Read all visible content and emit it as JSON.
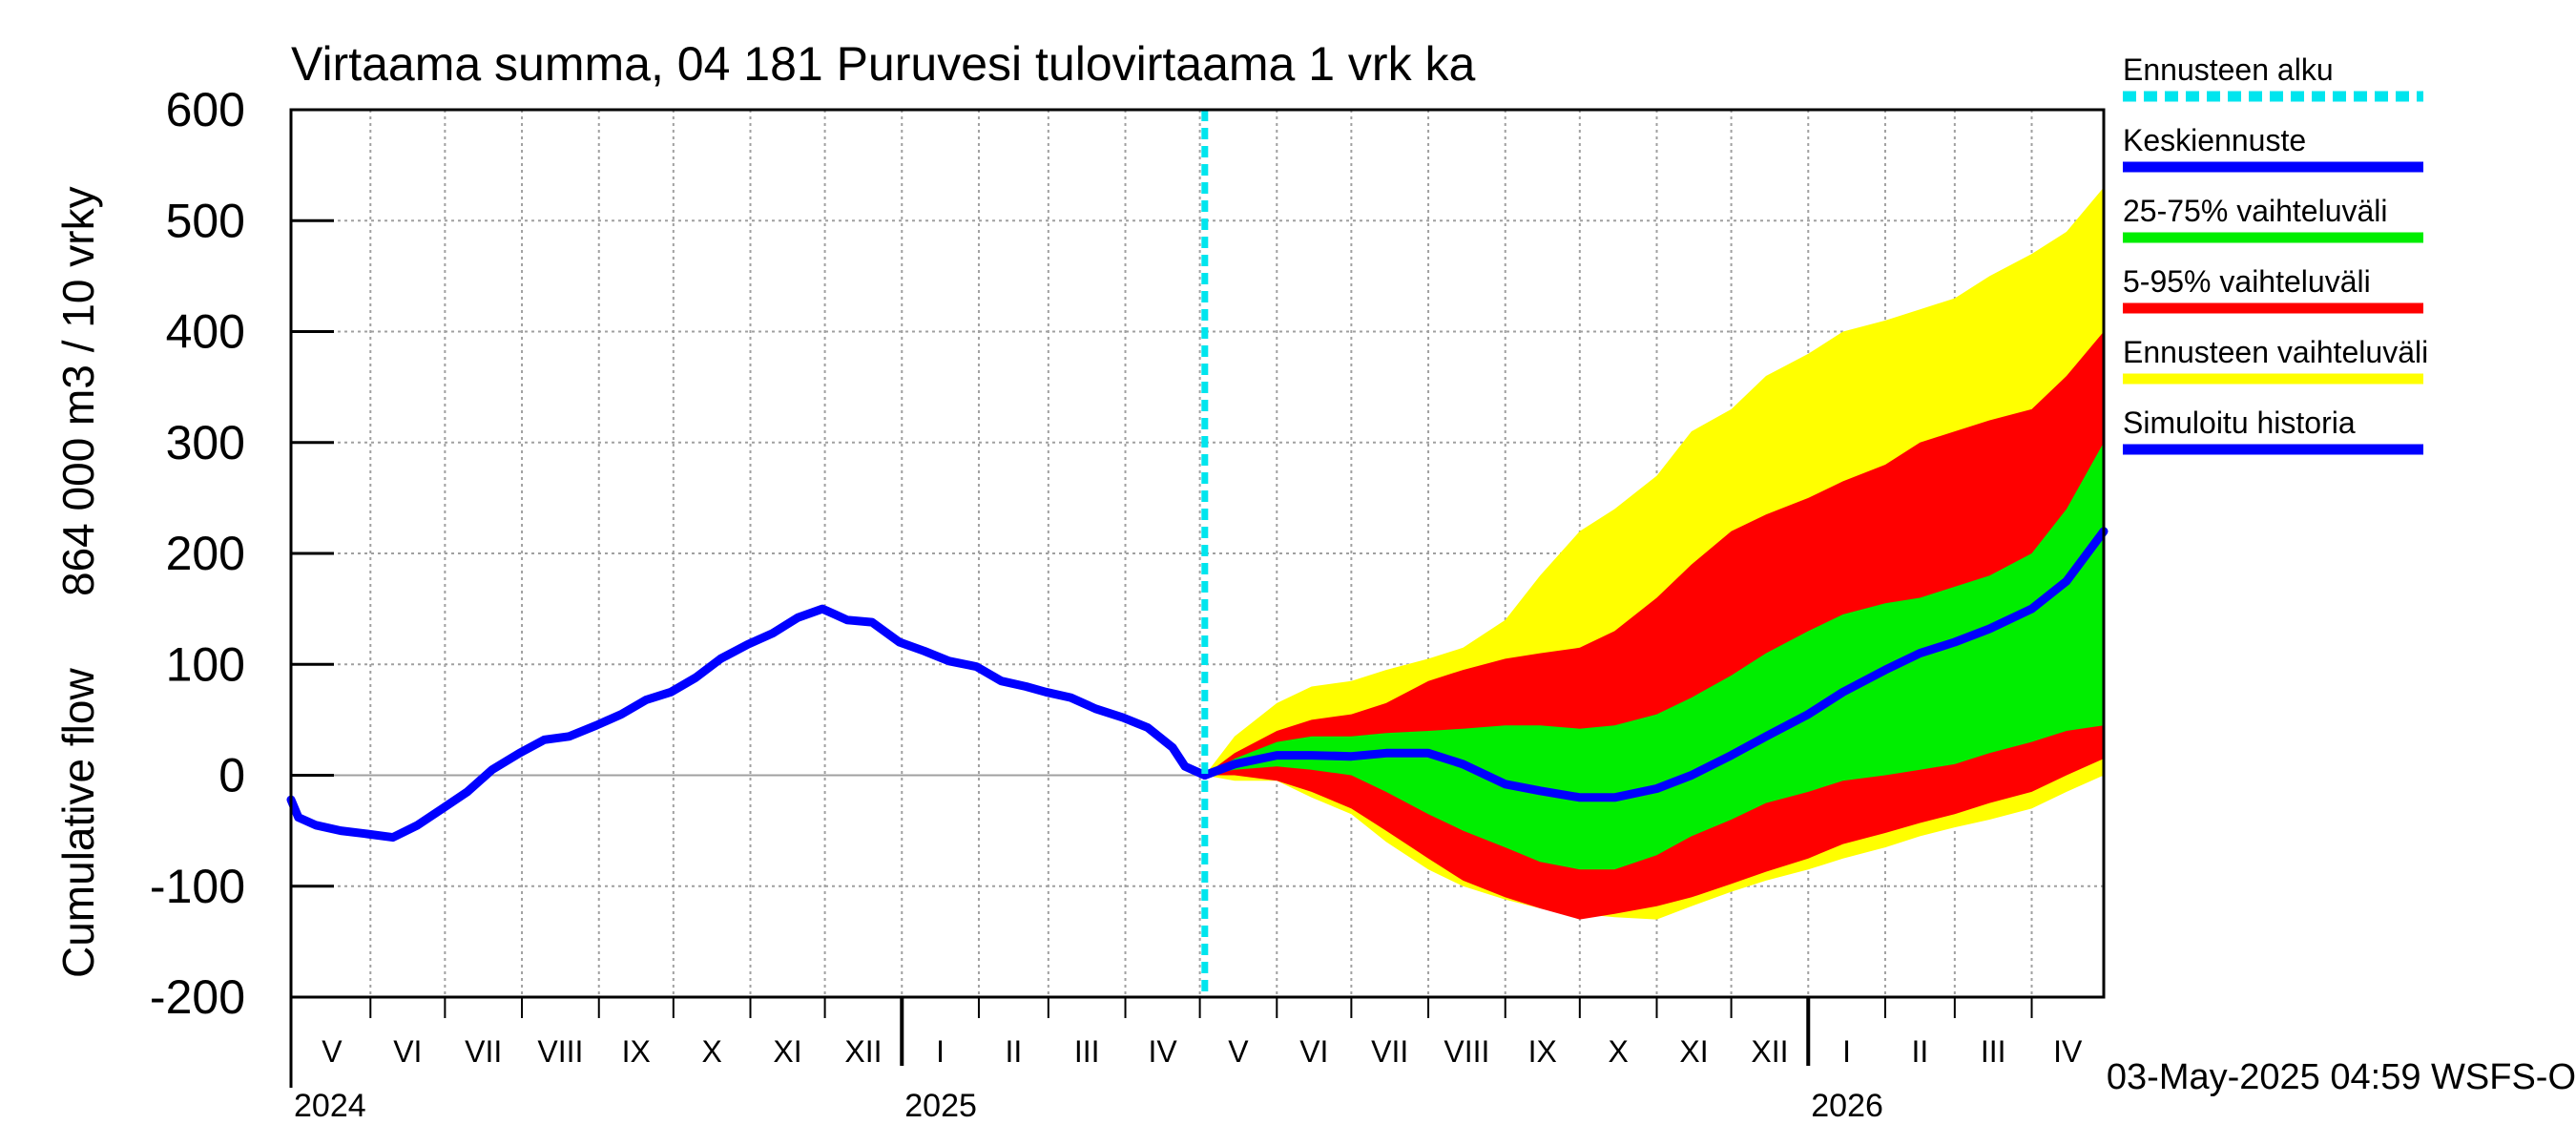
{
  "chart_data": {
    "type": "area",
    "title": "Virtaama summa, 04 181 Puruvesi tulovirtaama 1 vrk ka",
    "ylabel_lines": [
      "864 000 m3 / 10 vrky",
      "Cumulative flow"
    ],
    "ylim": [
      -200,
      600
    ],
    "yticks": [
      -200,
      -100,
      0,
      100,
      200,
      300,
      400,
      500,
      600
    ],
    "grid": true,
    "legend_position": "right",
    "xrange": [
      "2024-04-30",
      "2026-04-30"
    ],
    "forecast_start": "2025-05-03",
    "months": [
      {
        "label": "V",
        "start": "2024-05-01"
      },
      {
        "label": "VI",
        "start": "2024-06-01"
      },
      {
        "label": "VII",
        "start": "2024-07-01"
      },
      {
        "label": "VIII",
        "start": "2024-08-01"
      },
      {
        "label": "IX",
        "start": "2024-09-01"
      },
      {
        "label": "X",
        "start": "2024-10-01"
      },
      {
        "label": "XI",
        "start": "2024-11-01"
      },
      {
        "label": "XII",
        "start": "2024-12-01"
      },
      {
        "label": "I",
        "start": "2025-01-01"
      },
      {
        "label": "II",
        "start": "2025-02-01"
      },
      {
        "label": "III",
        "start": "2025-03-01"
      },
      {
        "label": "IV",
        "start": "2025-04-01"
      },
      {
        "label": "V",
        "start": "2025-05-01"
      },
      {
        "label": "VI",
        "start": "2025-06-01"
      },
      {
        "label": "VII",
        "start": "2025-07-01"
      },
      {
        "label": "VIII",
        "start": "2025-08-01"
      },
      {
        "label": "IX",
        "start": "2025-09-01"
      },
      {
        "label": "X",
        "start": "2025-10-01"
      },
      {
        "label": "XI",
        "start": "2025-11-01"
      },
      {
        "label": "XII",
        "start": "2025-12-01"
      },
      {
        "label": "I",
        "start": "2026-01-01"
      },
      {
        "label": "II",
        "start": "2026-02-01"
      },
      {
        "label": "III",
        "start": "2026-03-01"
      },
      {
        "label": "IV",
        "start": "2026-04-01"
      }
    ],
    "years": [
      {
        "label": "2024",
        "start": "2024-05-01"
      },
      {
        "label": "2025",
        "start": "2025-01-01"
      },
      {
        "label": "2026",
        "start": "2026-01-01"
      }
    ],
    "legend": [
      {
        "label": "Ennusteen alku",
        "color": "#00e5ee",
        "style": "dashed"
      },
      {
        "label": "Keskiennuste",
        "color": "#0000ff",
        "style": "solid"
      },
      {
        "label": "25-75% vaihteluväli",
        "color": "#00ee00",
        "style": "solid"
      },
      {
        "label": "5-95% vaihteluväli",
        "color": "#ff0000",
        "style": "solid"
      },
      {
        "label": "Ennusteen vaihteluväli",
        "color": "#ffff00",
        "style": "solid"
      },
      {
        "label": "Simuloitu historia",
        "color": "#0000ff",
        "style": "solid"
      }
    ],
    "colors": {
      "history": "#0000ff",
      "median": "#0000ff",
      "band_25_75": "#00ee00",
      "band_5_95": "#ff0000",
      "band_full": "#ffff00",
      "forecast_start": "#00e5ee",
      "grid": "#a0a0a0",
      "zero_line": "#a0a0a0"
    },
    "series": [
      {
        "name": "Simuloitu historia",
        "x": [
          "2024-04-30",
          "2024-05-03",
          "2024-05-10",
          "2024-05-20",
          "2024-05-31",
          "2024-06-10",
          "2024-06-20",
          "2024-06-30",
          "2024-07-10",
          "2024-07-20",
          "2024-07-31",
          "2024-08-10",
          "2024-08-20",
          "2024-08-31",
          "2024-09-10",
          "2024-09-20",
          "2024-09-30",
          "2024-10-10",
          "2024-10-20",
          "2024-10-31",
          "2024-11-10",
          "2024-11-15",
          "2024-11-20",
          "2024-11-30",
          "2024-12-05",
          "2024-12-10",
          "2024-12-20",
          "2024-12-31",
          "2025-01-10",
          "2025-01-20",
          "2025-01-31",
          "2025-02-10",
          "2025-02-20",
          "2025-02-28",
          "2025-03-10",
          "2025-03-20",
          "2025-03-31",
          "2025-04-10",
          "2025-04-20",
          "2025-04-25",
          "2025-05-03"
        ],
        "y": [
          -22,
          -38,
          -45,
          -50,
          -53,
          -56,
          -45,
          -30,
          -15,
          5,
          20,
          32,
          35,
          45,
          55,
          68,
          75,
          88,
          105,
          118,
          128,
          135,
          142,
          150,
          145,
          140,
          138,
          120,
          112,
          103,
          98,
          85,
          80,
          75,
          70,
          60,
          52,
          43,
          25,
          8,
          0
        ]
      },
      {
        "name": "Keskiennuste",
        "x": [
          "2025-05-03",
          "2025-05-15",
          "2025-06-01",
          "2025-06-15",
          "2025-07-01",
          "2025-07-15",
          "2025-08-01",
          "2025-08-15",
          "2025-09-01",
          "2025-09-15",
          "2025-10-01",
          "2025-10-15",
          "2025-11-01",
          "2025-11-15",
          "2025-12-01",
          "2025-12-15",
          "2026-01-01",
          "2026-01-15",
          "2026-02-01",
          "2026-02-15",
          "2026-03-01",
          "2026-03-15",
          "2026-04-01",
          "2026-04-15",
          "2026-04-30"
        ],
        "y": [
          0,
          10,
          18,
          18,
          17,
          20,
          20,
          10,
          -8,
          -14,
          -20,
          -20,
          -12,
          0,
          18,
          35,
          55,
          75,
          95,
          110,
          120,
          132,
          150,
          175,
          220
        ]
      }
    ],
    "bands": [
      {
        "name": "Ennusteen vaihteluväli",
        "x": [
          "2025-05-03",
          "2025-05-15",
          "2025-06-01",
          "2025-06-15",
          "2025-07-01",
          "2025-07-15",
          "2025-08-01",
          "2025-08-15",
          "2025-09-01",
          "2025-09-15",
          "2025-10-01",
          "2025-10-15",
          "2025-11-01",
          "2025-11-15",
          "2025-12-01",
          "2025-12-15",
          "2026-01-01",
          "2026-01-15",
          "2026-02-01",
          "2026-02-15",
          "2026-03-01",
          "2026-03-15",
          "2026-04-01",
          "2026-04-15",
          "2026-04-30"
        ],
        "upper": [
          0,
          35,
          65,
          80,
          85,
          95,
          105,
          115,
          140,
          180,
          220,
          240,
          270,
          310,
          330,
          360,
          380,
          400,
          410,
          420,
          430,
          450,
          470,
          490,
          530
        ],
        "lower": [
          0,
          -5,
          -5,
          -20,
          -35,
          -60,
          -85,
          -100,
          -112,
          -120,
          -125,
          -128,
          -130,
          -118,
          -105,
          -95,
          -85,
          -75,
          -65,
          -55,
          -47,
          -40,
          -30,
          -15,
          0
        ]
      },
      {
        "name": "5-95% vaihteluväli",
        "x": [
          "2025-05-03",
          "2025-05-15",
          "2025-06-01",
          "2025-06-15",
          "2025-07-01",
          "2025-07-15",
          "2025-08-01",
          "2025-08-15",
          "2025-09-01",
          "2025-09-15",
          "2025-10-01",
          "2025-10-15",
          "2025-11-01",
          "2025-11-15",
          "2025-12-01",
          "2025-12-15",
          "2026-01-01",
          "2026-01-15",
          "2026-02-01",
          "2026-02-15",
          "2026-03-01",
          "2026-03-15",
          "2026-04-01",
          "2026-04-15",
          "2026-04-30"
        ],
        "upper": [
          0,
          20,
          40,
          50,
          55,
          65,
          85,
          95,
          105,
          110,
          115,
          130,
          160,
          190,
          220,
          235,
          250,
          265,
          280,
          300,
          310,
          320,
          330,
          360,
          400
        ],
        "lower": [
          0,
          0,
          -5,
          -15,
          -30,
          -50,
          -75,
          -95,
          -110,
          -120,
          -130,
          -125,
          -118,
          -110,
          -98,
          -87,
          -75,
          -62,
          -52,
          -43,
          -35,
          -25,
          -15,
          0,
          15
        ]
      },
      {
        "name": "25-75% vaihteluväli",
        "x": [
          "2025-05-03",
          "2025-05-15",
          "2025-06-01",
          "2025-06-15",
          "2025-07-01",
          "2025-07-15",
          "2025-08-01",
          "2025-08-15",
          "2025-09-01",
          "2025-09-15",
          "2025-10-01",
          "2025-10-15",
          "2025-11-01",
          "2025-11-15",
          "2025-12-01",
          "2025-12-15",
          "2026-01-01",
          "2026-01-15",
          "2026-02-01",
          "2026-02-15",
          "2026-03-01",
          "2026-03-15",
          "2026-04-01",
          "2026-04-15",
          "2026-04-30"
        ],
        "upper": [
          0,
          15,
          30,
          35,
          35,
          38,
          40,
          42,
          45,
          45,
          42,
          45,
          55,
          70,
          90,
          110,
          130,
          145,
          155,
          160,
          170,
          180,
          200,
          240,
          300
        ],
        "lower": [
          0,
          5,
          8,
          5,
          0,
          -15,
          -35,
          -50,
          -65,
          -78,
          -85,
          -85,
          -72,
          -55,
          -40,
          -25,
          -15,
          -5,
          0,
          5,
          10,
          20,
          30,
          40,
          45
        ]
      }
    ]
  },
  "footer": {
    "timestamp": "03-May-2025 04:59 WSFS-O"
  }
}
